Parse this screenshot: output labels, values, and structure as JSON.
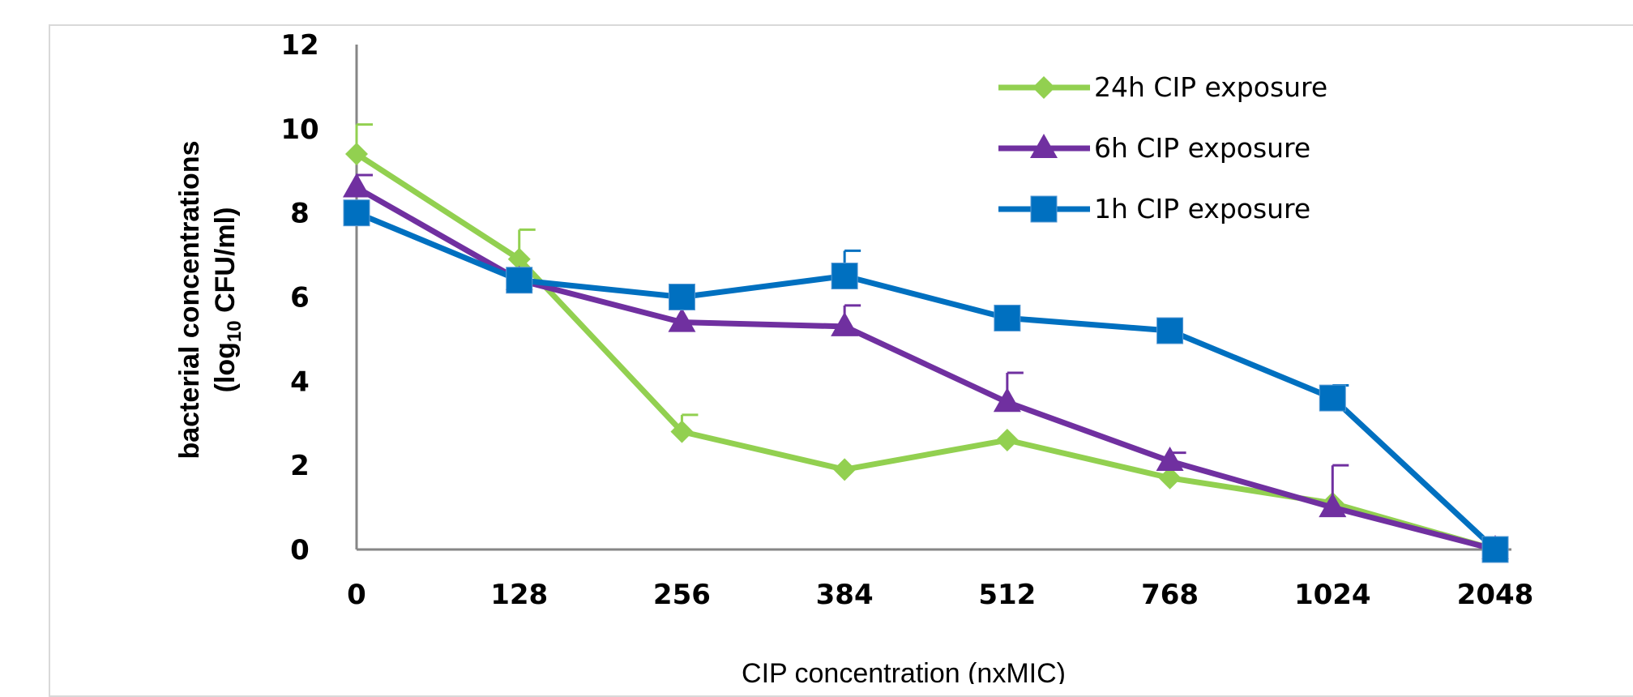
{
  "chart_data": {
    "type": "line",
    "categories": [
      "0",
      "128",
      "256",
      "384",
      "512",
      "768",
      "1024",
      "2048"
    ],
    "xlabel": "CIP concentration (nxMIC)",
    "ylabel_line1": "bacterial concentrations",
    "ylabel_line2_prefix": "(log",
    "ylabel_line2_sub": "10",
    "ylabel_line2_suffix": " CFU/ml)",
    "ylim": [
      0,
      12
    ],
    "yticks": [
      0,
      2,
      4,
      6,
      8,
      10,
      12
    ],
    "legend_position": "top-right",
    "series": [
      {
        "name": "24h CIP exposure",
        "marker": "diamond",
        "color": "#92d050",
        "values": [
          9.4,
          6.9,
          2.8,
          1.9,
          2.6,
          1.7,
          1.1,
          0.0
        ],
        "errors": [
          0.7,
          0.7,
          0.4,
          0.0,
          0.0,
          0.0,
          0.0,
          0.0
        ]
      },
      {
        "name": "6h CIP exposure",
        "marker": "triangle",
        "color": "#7030a0",
        "values": [
          8.6,
          6.4,
          5.4,
          5.3,
          3.5,
          2.1,
          1.0,
          0.0
        ],
        "errors": [
          0.3,
          0.0,
          0.0,
          0.5,
          0.7,
          0.2,
          1.0,
          0.0
        ]
      },
      {
        "name": "1h CIP exposure",
        "marker": "square",
        "color": "#0070c0",
        "values": [
          8.0,
          6.4,
          6.0,
          6.5,
          5.5,
          5.2,
          3.6,
          0.0
        ],
        "errors": [
          0.0,
          0.0,
          0.0,
          0.6,
          0.0,
          0.0,
          0.3,
          0.0
        ]
      }
    ]
  }
}
